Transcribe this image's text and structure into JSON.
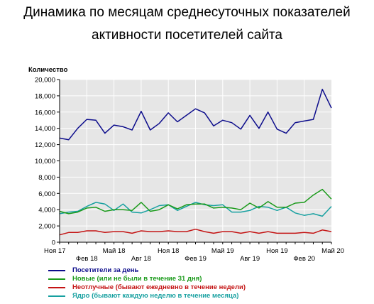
{
  "title_line1": "Динамика по месяцам среднесуточных показателей",
  "title_line2": "активности посетителей сайта",
  "chart_data": {
    "type": "line",
    "ylabel": "Количество",
    "ylim": [
      0,
      20000
    ],
    "yticks": [
      0,
      2000,
      4000,
      6000,
      8000,
      10000,
      12000,
      14000,
      16000,
      18000,
      20000
    ],
    "ytick_labels": [
      "0",
      "2,000",
      "4,000",
      "6,000",
      "8,000",
      "10,000",
      "12,000",
      "14,000",
      "16,000",
      "18,000",
      "20,000"
    ],
    "x": [
      "2017-11",
      "2017-12",
      "2018-01",
      "2018-02",
      "2018-03",
      "2018-04",
      "2018-05",
      "2018-06",
      "2018-07",
      "2018-08",
      "2018-09",
      "2018-10",
      "2018-11",
      "2018-12",
      "2019-01",
      "2019-02",
      "2019-03",
      "2019-04",
      "2019-05",
      "2019-06",
      "2019-07",
      "2019-08",
      "2019-09",
      "2019-10",
      "2019-11",
      "2019-12",
      "2020-01",
      "2020-02",
      "2020-03",
      "2020-04",
      "2020-05"
    ],
    "xtick_labels_top": [
      {
        "index": 0,
        "label": "Ноя 17"
      },
      {
        "index": 6,
        "label": "Май 18"
      },
      {
        "index": 12,
        "label": "Ноя 18"
      },
      {
        "index": 18,
        "label": "Май 19"
      },
      {
        "index": 24,
        "label": "Ноя 19"
      },
      {
        "index": 30,
        "label": "Май 20"
      }
    ],
    "xtick_labels_bottom": [
      {
        "index": 3,
        "label": "Фев 18"
      },
      {
        "index": 9,
        "label": "Авг 18"
      },
      {
        "index": 15,
        "label": "Фев 19"
      },
      {
        "index": 21,
        "label": "Авг 19"
      },
      {
        "index": 27,
        "label": "Фев 20"
      }
    ],
    "grid": true,
    "legend_position": "bottom",
    "series": [
      {
        "name": "Посетители за день",
        "color": "#0d0d8c",
        "values": [
          12800,
          12600,
          14000,
          15100,
          15000,
          13400,
          14400,
          14200,
          13800,
          16100,
          13800,
          14600,
          15900,
          14800,
          15600,
          16400,
          15900,
          14300,
          15000,
          14700,
          13900,
          15600,
          14000,
          16000,
          13900,
          13400,
          14700,
          14900,
          15100,
          18800,
          16500
        ]
      },
      {
        "name": "Новые (или не были в течение 31 дня)",
        "color": "#1a9a1a",
        "values": [
          3800,
          3500,
          3700,
          4200,
          4300,
          3800,
          4000,
          4000,
          3900,
          4900,
          3800,
          4000,
          4600,
          4100,
          4600,
          4700,
          4700,
          4200,
          4300,
          4200,
          4000,
          4800,
          4200,
          5000,
          4300,
          4300,
          4800,
          4900,
          5800,
          6500,
          5300
        ]
      },
      {
        "name": "Неотлучные (бывают ежедневно в течение недели)",
        "color": "#c41414",
        "values": [
          900,
          1200,
          1200,
          1400,
          1400,
          1200,
          1300,
          1300,
          1100,
          1400,
          1300,
          1300,
          1400,
          1300,
          1300,
          1600,
          1300,
          1100,
          1300,
          1300,
          1100,
          1300,
          1100,
          1300,
          1100,
          1100,
          1100,
          1200,
          1100,
          1500,
          1300
        ]
      },
      {
        "name": "Ядро (бывают каждую неделю в течение месяца)",
        "color": "#17a0a0",
        "values": [
          3500,
          3700,
          3800,
          4400,
          4900,
          4700,
          3900,
          4700,
          3700,
          3600,
          4000,
          4500,
          4600,
          3900,
          4400,
          4900,
          4600,
          4500,
          4600,
          3700,
          3700,
          3900,
          4400,
          4300,
          3900,
          4300,
          3600,
          3300,
          3500,
          3200,
          4400
        ]
      }
    ]
  }
}
